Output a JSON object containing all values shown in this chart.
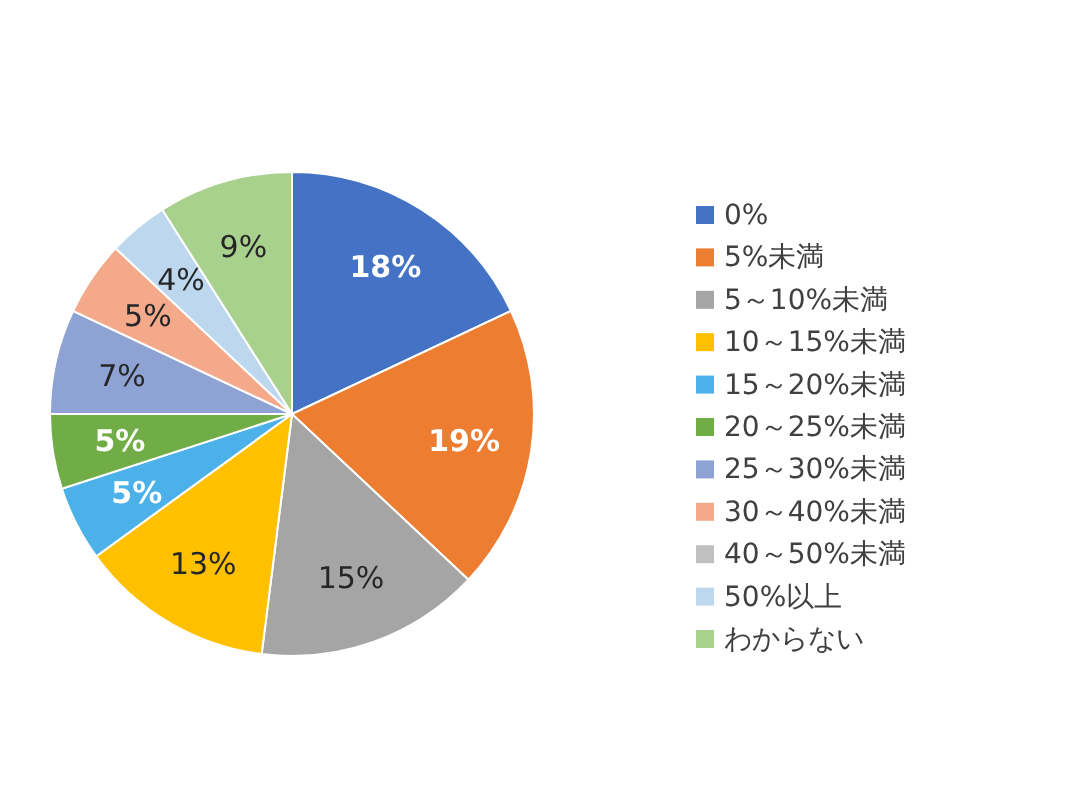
{
  "chart_data": {
    "type": "pie",
    "categories": [
      "0%",
      "5%未満",
      "5～10%未満",
      "10～15%未満",
      "15～20%未満",
      "20～25%未満",
      "25～30%未満",
      "30～40%未満",
      "40～50%未満",
      "50%以上",
      "わからない"
    ],
    "values": [
      18,
      19,
      15,
      13,
      5,
      5,
      7,
      5,
      0,
      4,
      9
    ],
    "colors": [
      "#4472c4",
      "#ed7d31",
      "#a5a5a5",
      "#ffc000",
      "#4cb1e8",
      "#70ad47",
      "#8fa2d4",
      "#f4a98a",
      "#c0c0c0",
      "#bdd7ee",
      "#a9d18e"
    ],
    "value_labels": [
      "18%",
      "19%",
      "15%",
      "13%",
      "5%",
      "5%",
      "7%",
      "5%",
      null,
      "4%",
      "9%"
    ],
    "legend": "right"
  }
}
